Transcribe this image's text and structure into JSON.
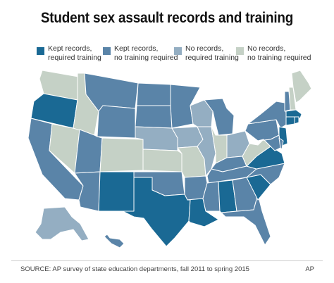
{
  "title": "Student sex assault records and training",
  "legend": [
    {
      "key": "kept_required",
      "line1": "Kept records,",
      "line2": "required training",
      "color": "#1a6994"
    },
    {
      "key": "kept_not_required",
      "line1": "Kept records,",
      "line2": "no training required",
      "color": "#5a84a8"
    },
    {
      "key": "none_required",
      "line1": "No records,",
      "line2": "required training",
      "color": "#94aec2"
    },
    {
      "key": "none_not_required",
      "line1": "No records,",
      "line2": "no training required",
      "color": "#c5d1c6"
    }
  ],
  "states": [
    {
      "name": "WA",
      "cat": "none_not_required"
    },
    {
      "name": "OR",
      "cat": "kept_required"
    },
    {
      "name": "CA",
      "cat": "kept_not_required"
    },
    {
      "name": "NV",
      "cat": "none_not_required"
    },
    {
      "name": "ID",
      "cat": "none_not_required"
    },
    {
      "name": "MT",
      "cat": "kept_not_required"
    },
    {
      "name": "WY",
      "cat": "kept_not_required"
    },
    {
      "name": "UT",
      "cat": "kept_not_required"
    },
    {
      "name": "AZ",
      "cat": "kept_not_required"
    },
    {
      "name": "CO",
      "cat": "none_not_required"
    },
    {
      "name": "NM",
      "cat": "kept_required"
    },
    {
      "name": "ND",
      "cat": "kept_not_required"
    },
    {
      "name": "SD",
      "cat": "kept_not_required"
    },
    {
      "name": "NE",
      "cat": "none_required"
    },
    {
      "name": "KS",
      "cat": "none_not_required"
    },
    {
      "name": "OK",
      "cat": "kept_not_required"
    },
    {
      "name": "TX",
      "cat": "kept_required"
    },
    {
      "name": "MN",
      "cat": "kept_not_required"
    },
    {
      "name": "IA",
      "cat": "none_required"
    },
    {
      "name": "MO",
      "cat": "none_not_required"
    },
    {
      "name": "AR",
      "cat": "kept_not_required"
    },
    {
      "name": "LA",
      "cat": "kept_required"
    },
    {
      "name": "WI",
      "cat": "none_required"
    },
    {
      "name": "IL",
      "cat": "none_required"
    },
    {
      "name": "MI",
      "cat": "kept_not_required"
    },
    {
      "name": "IN",
      "cat": "none_not_required"
    },
    {
      "name": "OH",
      "cat": "none_required"
    },
    {
      "name": "KY",
      "cat": "kept_not_required"
    },
    {
      "name": "TN",
      "cat": "kept_not_required"
    },
    {
      "name": "MS",
      "cat": "kept_not_required"
    },
    {
      "name": "AL",
      "cat": "kept_required"
    },
    {
      "name": "GA",
      "cat": "kept_not_required"
    },
    {
      "name": "FL",
      "cat": "kept_not_required"
    },
    {
      "name": "SC",
      "cat": "kept_required"
    },
    {
      "name": "NC",
      "cat": "kept_not_required"
    },
    {
      "name": "VA",
      "cat": "kept_required"
    },
    {
      "name": "WV",
      "cat": "none_not_required"
    },
    {
      "name": "PA",
      "cat": "kept_not_required"
    },
    {
      "name": "NY",
      "cat": "kept_not_required"
    },
    {
      "name": "MD",
      "cat": "kept_not_required"
    },
    {
      "name": "DE",
      "cat": "kept_not_required"
    },
    {
      "name": "NJ",
      "cat": "kept_required"
    },
    {
      "name": "CT",
      "cat": "kept_required"
    },
    {
      "name": "RI",
      "cat": "kept_required"
    },
    {
      "name": "MA",
      "cat": "kept_required"
    },
    {
      "name": "VT",
      "cat": "kept_not_required"
    },
    {
      "name": "NH",
      "cat": "none_not_required"
    },
    {
      "name": "ME",
      "cat": "none_not_required"
    },
    {
      "name": "AK",
      "cat": "none_required"
    },
    {
      "name": "HI",
      "cat": "kept_not_required"
    }
  ],
  "source": "SOURCE: AP survey of state education departments, fall 2011 to spring 2015",
  "credit": "AP"
}
